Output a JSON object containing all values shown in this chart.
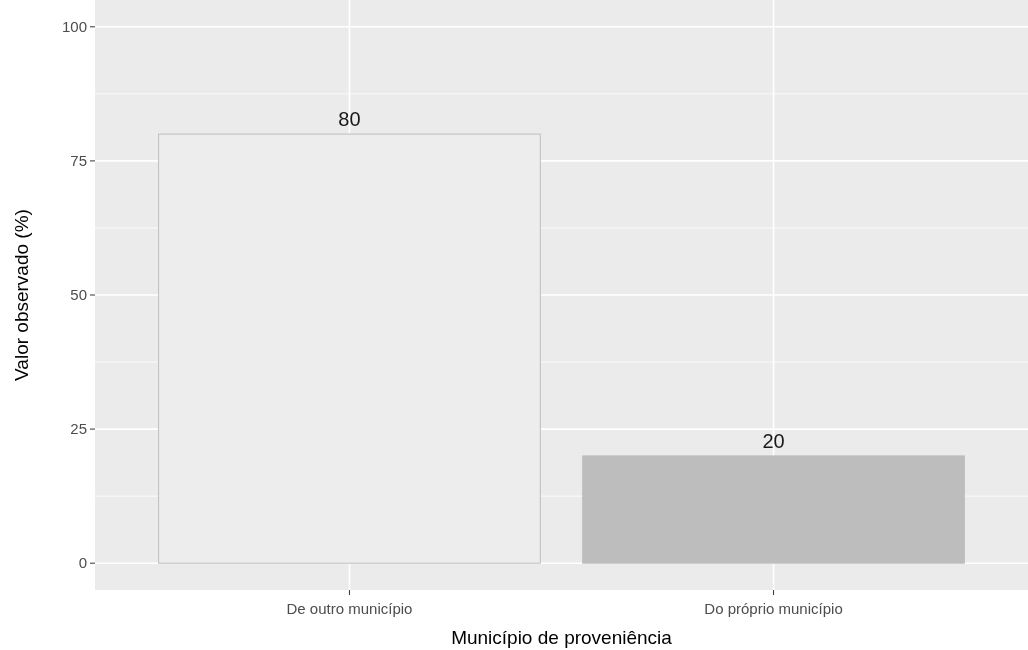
{
  "chart_data": {
    "type": "bar",
    "xlabel": "Município de proveniência",
    "ylabel": "Valor observado (%)",
    "categories": [
      "De outro município",
      "Do próprio município"
    ],
    "values": [
      80,
      20
    ],
    "colors": [
      "#ededed",
      "#bdbdbd"
    ],
    "ylim": [
      -5,
      105
    ],
    "yticks": [
      0,
      25,
      50,
      75,
      100
    ],
    "grid": true,
    "data_labels": true
  }
}
